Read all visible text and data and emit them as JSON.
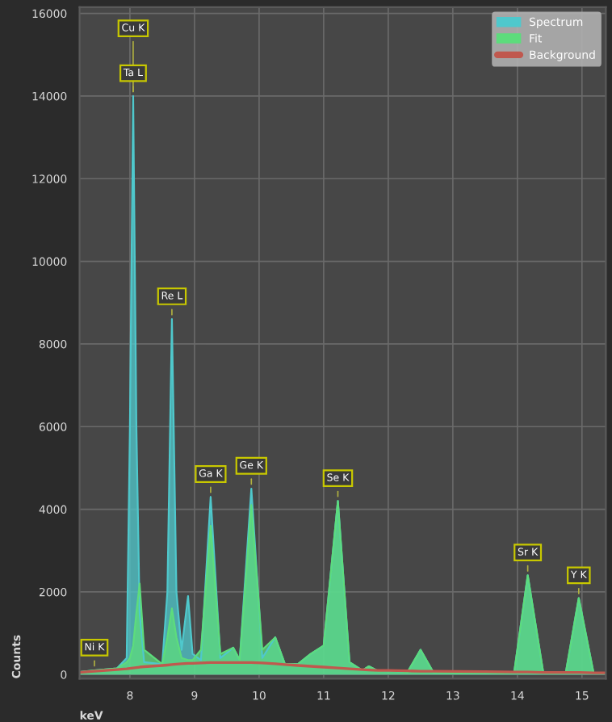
{
  "chart_data": {
    "type": "area",
    "xlabel": "keV",
    "ylabel": "Counts",
    "x": [
      7.22,
      7.45,
      7.8,
      7.95,
      8.0,
      8.05,
      8.1,
      8.15,
      8.22,
      8.5,
      8.58,
      8.65,
      8.72,
      8.8,
      8.9,
      8.97,
      9.1,
      9.25,
      9.4,
      9.6,
      9.7,
      9.88,
      10.05,
      10.25,
      10.4,
      10.6,
      10.8,
      11.0,
      11.22,
      11.4,
      11.6,
      11.7,
      11.85,
      12.0,
      12.3,
      12.5,
      12.7,
      13.5,
      13.95,
      14.16,
      14.4,
      14.75,
      14.95,
      15.18,
      15.37
    ],
    "series": [
      {
        "name": "Spectrum",
        "color": "#4fc8cc",
        "values": [
          60,
          100,
          150,
          400,
          6000,
          14000,
          6000,
          1500,
          300,
          250,
          2000,
          8600,
          2000,
          600,
          1900,
          500,
          350,
          4300,
          400,
          650,
          350,
          4500,
          400,
          900,
          250,
          250,
          500,
          700,
          4200,
          300,
          100,
          200,
          80,
          100,
          60,
          600,
          50,
          40,
          50,
          2400,
          50,
          50,
          1850,
          30,
          30
        ]
      },
      {
        "name": "Fit",
        "color": "#5ddc7c",
        "values": [
          60,
          100,
          150,
          300,
          400,
          700,
          1500,
          2200,
          600,
          250,
          900,
          1600,
          900,
          400,
          350,
          350,
          600,
          3600,
          500,
          650,
          350,
          4100,
          600,
          900,
          250,
          250,
          500,
          700,
          4200,
          300,
          100,
          200,
          80,
          100,
          60,
          600,
          50,
          40,
          50,
          2400,
          50,
          50,
          1850,
          30,
          30
        ]
      },
      {
        "name": "Background",
        "type": "line",
        "color": "#c0584e",
        "values": [
          50,
          80,
          120,
          140,
          150,
          160,
          170,
          180,
          190,
          220,
          230,
          240,
          250,
          260,
          270,
          270,
          280,
          290,
          290,
          290,
          290,
          290,
          280,
          260,
          240,
          220,
          200,
          180,
          160,
          140,
          120,
          110,
          100,
          100,
          90,
          80,
          80,
          70,
          60,
          60,
          50,
          50,
          50,
          40,
          40
        ]
      }
    ],
    "xlim": [
      7.22,
      15.37
    ],
    "ylim": [
      -100,
      16150
    ],
    "xticks": [
      8,
      9,
      10,
      11,
      12,
      13,
      14,
      15
    ],
    "yticks": [
      0,
      2000,
      4000,
      6000,
      8000,
      10000,
      12000,
      14000,
      16000
    ],
    "grid": true,
    "legend": "top right",
    "annotations": [
      {
        "text": "Cu K",
        "x": 8.05,
        "y": 14000
      },
      {
        "text": "Ta L",
        "x": 8.05,
        "y": 14000
      },
      {
        "text": "Re L",
        "x": 8.65,
        "y": 8600
      },
      {
        "text": "Ga K",
        "x": 9.25,
        "y": 4300
      },
      {
        "text": "Ge K",
        "x": 9.88,
        "y": 4500
      },
      {
        "text": "Se K",
        "x": 11.22,
        "y": 4200
      },
      {
        "text": "Sr K",
        "x": 14.16,
        "y": 2400
      },
      {
        "text": "Y K",
        "x": 14.95,
        "y": 1850
      },
      {
        "text": "Ni K",
        "x": 7.45,
        "y": 100
      }
    ]
  }
}
